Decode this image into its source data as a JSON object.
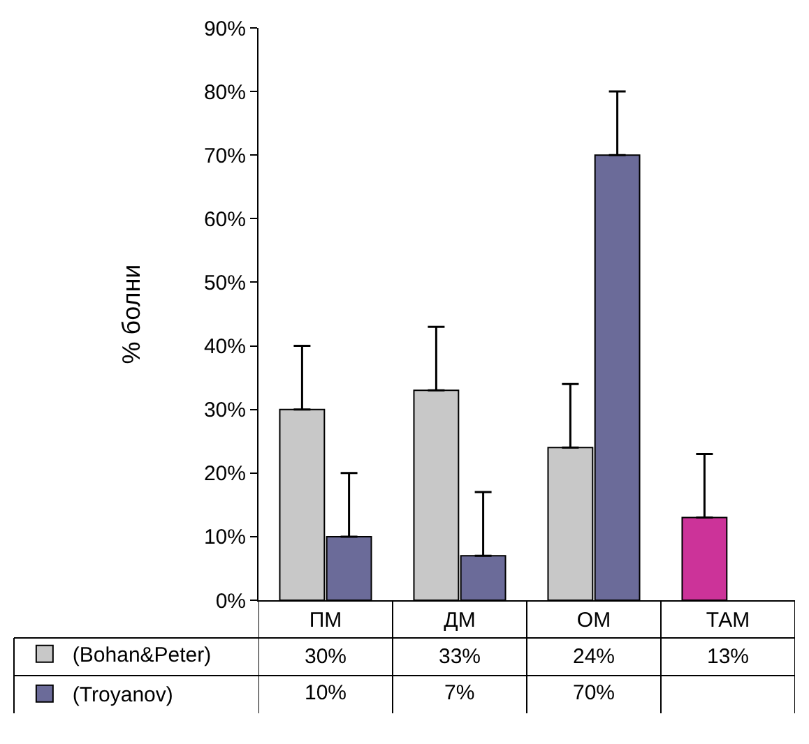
{
  "chart_data": {
    "type": "bar",
    "ylabel": "% болни",
    "categories": [
      "ПМ",
      "ДМ",
      "ОМ",
      "ТАМ"
    ],
    "series": [
      {
        "name": "(Bohan&Peter)",
        "color": "#c8c8c8",
        "colors": [
          "#c8c8c8",
          "#c8c8c8",
          "#c8c8c8",
          "#cc3399"
        ],
        "values": [
          30,
          33,
          24,
          13
        ],
        "errors": [
          [
            30,
            40
          ],
          [
            33,
            43
          ],
          [
            24,
            34
          ],
          [
            13,
            23
          ]
        ],
        "value_labels": [
          "30%",
          "33%",
          "24%",
          "13%"
        ]
      },
      {
        "name": "(Troyanov)",
        "color": "#6b6b99",
        "values": [
          10,
          7,
          70,
          null
        ],
        "errors": [
          [
            10,
            20
          ],
          [
            7,
            17
          ],
          [
            70,
            80
          ],
          null
        ],
        "value_labels": [
          "10%",
          "7%",
          "70%",
          null
        ]
      }
    ],
    "ylim": [
      0,
      90
    ],
    "yticks": [
      {
        "value": 0,
        "label": "0%"
      },
      {
        "value": 10,
        "label": "10%"
      },
      {
        "value": 20,
        "label": "20%"
      },
      {
        "value": 30,
        "label": "30%"
      },
      {
        "value": 40,
        "label": "40%"
      },
      {
        "value": 50,
        "label": "50%"
      },
      {
        "value": 60,
        "label": "60%"
      },
      {
        "value": 70,
        "label": "70%"
      },
      {
        "value": 80,
        "label": "80%"
      },
      {
        "value": 90,
        "label": "90%"
      }
    ],
    "legend": "bottom left"
  }
}
